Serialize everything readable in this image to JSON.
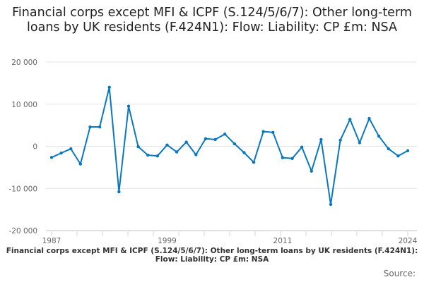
{
  "chart_data": {
    "type": "line",
    "title": "Financial corps except MFI & ICPF (S.124/5/6/7): Other long-term loans by UK residents (F.424N1): Flow: Liability: CP £m: NSA",
    "subtitle": "Financial corps except MFI & ICPF (S.124/5/6/7): Other long-term loans by UK residents (F.424N1): Flow: Liability: CP £m: NSA",
    "source_label": "Source:",
    "xlabel": "",
    "ylabel": "",
    "xlim": [
      1987,
      2024
    ],
    "ylim": [
      -20000,
      20000
    ],
    "x_tick_labels": [
      "1987",
      "1999",
      "2011",
      "2024"
    ],
    "y_ticks": [
      20000,
      10000,
      0,
      -10000,
      -20000
    ],
    "y_tick_labels": [
      "20 000",
      "10 000",
      "0",
      "-10 000",
      "-20 000"
    ],
    "grid": true,
    "color": "#0a78c0",
    "x": [
      1987,
      1988,
      1989,
      1990,
      1991,
      1992,
      1993,
      1994,
      1995,
      1996,
      1997,
      1998,
      1999,
      2000,
      2001,
      2002,
      2003,
      2004,
      2005,
      2006,
      2007,
      2008,
      2009,
      2010,
      2011,
      2012,
      2013,
      2014,
      2015,
      2016,
      2017,
      2018,
      2019,
      2020,
      2021,
      2022,
      2023,
      2024
    ],
    "series": [
      {
        "name": "Flow",
        "values": [
          -2650,
          -1600,
          -600,
          -4200,
          4600,
          4600,
          14000,
          -10800,
          9500,
          -100,
          -2100,
          -2300,
          300,
          -1350,
          1000,
          -2000,
          1800,
          1600,
          2900,
          600,
          -1500,
          -3800,
          3500,
          3300,
          -2700,
          -2900,
          -200,
          -5900,
          1600,
          -13800,
          1450,
          6400,
          850,
          6600,
          2400,
          -600,
          -2300,
          -1050
        ]
      }
    ]
  }
}
